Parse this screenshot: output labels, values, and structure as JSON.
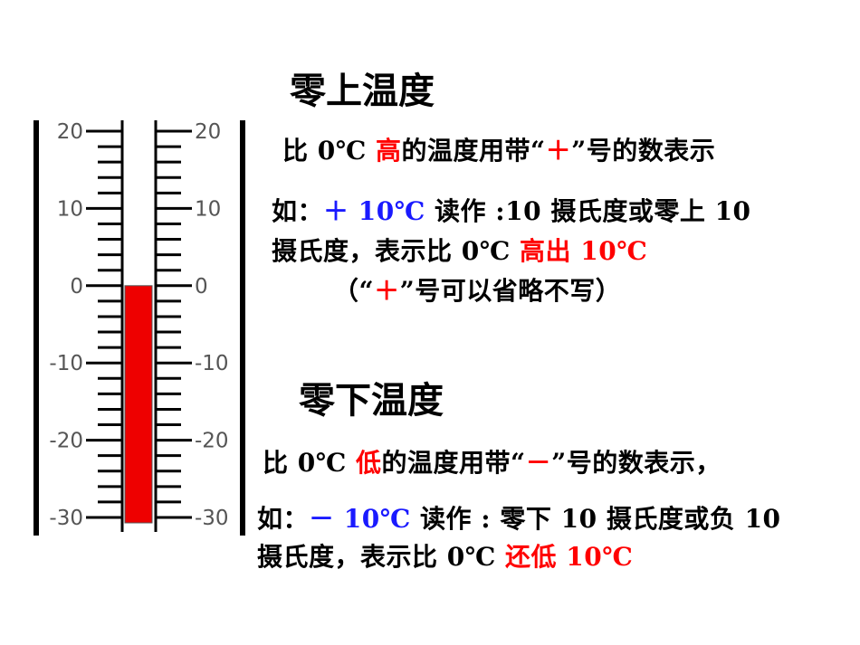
{
  "thermometer": {
    "scale_labels": [
      "20",
      "10",
      "0",
      "-10",
      "-20",
      "-30"
    ],
    "reading": 0,
    "scale_min": -30,
    "scale_max": 20,
    "liquid_color": "#ee0000"
  },
  "above_zero": {
    "heading": "零上温度",
    "rule_pre": "比 0℃ ",
    "rule_highlight": "高",
    "rule_mid": "的温度用带“",
    "rule_sign": "＋",
    "rule_post": "”号的数表示",
    "example_prefix": "如：",
    "example_value": "＋ 10℃",
    "example_read_1": " 读作 :10 摄氏度或零上 10",
    "example_read_2": "摄氏度，表示比 0℃ ",
    "example_highlight": "高出 10℃",
    "note_pre": "（“",
    "note_sign": "＋",
    "note_post": "”号可以省略不写）"
  },
  "below_zero": {
    "heading": "零下温度",
    "rule_pre": "比 0℃ ",
    "rule_highlight": "低",
    "rule_mid": "的温度用带“",
    "rule_sign": "－",
    "rule_post": "”号的数表示，",
    "example_prefix": "如：",
    "example_value": "－ 10℃",
    "example_read_1": " 读作 : 零下 10 摄氏度或负 10",
    "example_read_2": "摄氏度，表示比 0℃ ",
    "example_highlight": "还低 10℃"
  },
  "colors": {
    "emphasis": "#ff0000",
    "value": "#1a1aff"
  }
}
